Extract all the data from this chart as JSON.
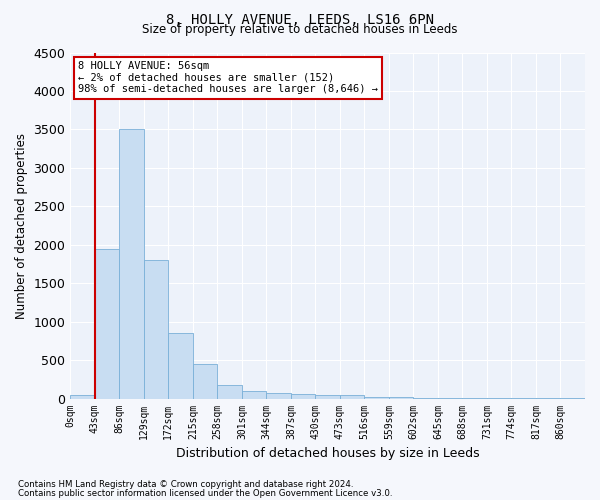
{
  "title": "8, HOLLY AVENUE, LEEDS, LS16 6PN",
  "subtitle": "Size of property relative to detached houses in Leeds",
  "xlabel": "Distribution of detached houses by size in Leeds",
  "ylabel": "Number of detached properties",
  "bins": [
    "0sqm",
    "43sqm",
    "86sqm",
    "129sqm",
    "172sqm",
    "215sqm",
    "258sqm",
    "301sqm",
    "344sqm",
    "387sqm",
    "430sqm",
    "473sqm",
    "516sqm",
    "559sqm",
    "602sqm",
    "645sqm",
    "688sqm",
    "731sqm",
    "774sqm",
    "817sqm",
    "860sqm"
  ],
  "values": [
    50,
    1950,
    3500,
    1800,
    850,
    450,
    175,
    100,
    75,
    60,
    50,
    40,
    20,
    15,
    12,
    10,
    8,
    7,
    5,
    4,
    3
  ],
  "bar_color": "#c8ddf2",
  "bar_edge_color": "#7ab0d8",
  "vline_x": 1,
  "vline_color": "#cc0000",
  "annotation_text": "8 HOLLY AVENUE: 56sqm\n← 2% of detached houses are smaller (152)\n98% of semi-detached houses are larger (8,646) →",
  "annotation_box_color": "#ffffff",
  "annotation_box_edge_color": "#cc0000",
  "ylim": [
    0,
    4500
  ],
  "yticks": [
    0,
    500,
    1000,
    1500,
    2000,
    2500,
    3000,
    3500,
    4000,
    4500
  ],
  "bg_color": "#edf2fa",
  "grid_color": "#ffffff",
  "fig_bg_color": "#f5f7fc",
  "footnote1": "Contains HM Land Registry data © Crown copyright and database right 2024.",
  "footnote2": "Contains public sector information licensed under the Open Government Licence v3.0."
}
